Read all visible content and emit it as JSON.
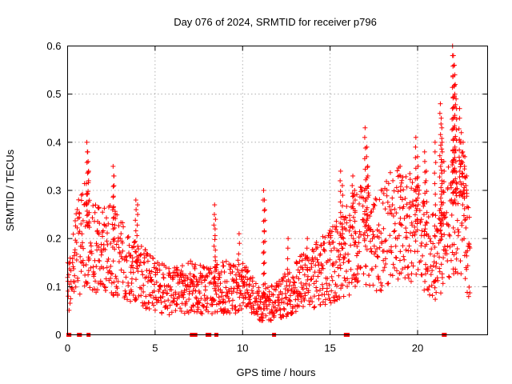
{
  "chart_data": {
    "type": "scatter",
    "title": "Day 076 of 2024, SRMTID for receiver p796",
    "xlabel": "GPS time / hours",
    "ylabel": "SRMTID / TECUs",
    "xlim": [
      0,
      24
    ],
    "ylim": [
      0,
      0.6
    ],
    "xticks": [
      0,
      5,
      10,
      15,
      20
    ],
    "xtick_labels": [
      "0",
      "5",
      "10",
      "15",
      "20"
    ],
    "yticks": [
      0,
      0.1,
      0.2,
      0.3,
      0.4,
      0.5,
      0.6
    ],
    "ytick_labels": [
      "0",
      "0.1",
      "0.2",
      "0.3",
      "0.4",
      "0.5",
      "0.6"
    ],
    "grid": true,
    "marker": "plus",
    "color": "#ff0000",
    "series": [
      {
        "name": "SRMTID",
        "trend": {
          "x": [
            0.0,
            0.3,
            0.6,
            0.9,
            1.1,
            1.5,
            2.0,
            2.5,
            3.0,
            3.5,
            4.0,
            4.5,
            5.0,
            6.0,
            7.0,
            8.0,
            9.0,
            10.0,
            11.0,
            12.0,
            13.0,
            14.0,
            15.0,
            15.8,
            16.5,
            17.0,
            17.5,
            18.0,
            18.5,
            19.0,
            19.5,
            20.0,
            20.5,
            21.0,
            21.5,
            22.0,
            22.5,
            23.0
          ],
          "y": [
            0.1,
            0.14,
            0.18,
            0.2,
            0.22,
            0.18,
            0.17,
            0.18,
            0.16,
            0.13,
            0.15,
            0.12,
            0.1,
            0.09,
            0.1,
            0.09,
            0.1,
            0.1,
            0.06,
            0.07,
            0.1,
            0.12,
            0.14,
            0.17,
            0.2,
            0.21,
            0.19,
            0.2,
            0.22,
            0.24,
            0.22,
            0.21,
            0.17,
            0.16,
            0.2,
            0.25,
            0.28,
            0.15
          ]
        },
        "spikes": [
          {
            "x": 1.1,
            "y": 0.4
          },
          {
            "x": 1.15,
            "y": 0.38
          },
          {
            "x": 1.2,
            "y": 0.34
          },
          {
            "x": 2.6,
            "y": 0.35
          },
          {
            "x": 2.65,
            "y": 0.33
          },
          {
            "x": 3.9,
            "y": 0.28
          },
          {
            "x": 4.0,
            "y": 0.27
          },
          {
            "x": 8.4,
            "y": 0.27
          },
          {
            "x": 8.45,
            "y": 0.24
          },
          {
            "x": 9.8,
            "y": 0.21
          },
          {
            "x": 11.2,
            "y": 0.3
          },
          {
            "x": 11.25,
            "y": 0.28
          },
          {
            "x": 12.6,
            "y": 0.2
          },
          {
            "x": 13.7,
            "y": 0.2
          },
          {
            "x": 15.6,
            "y": 0.34
          },
          {
            "x": 15.7,
            "y": 0.31
          },
          {
            "x": 16.3,
            "y": 0.33
          },
          {
            "x": 16.4,
            "y": 0.3
          },
          {
            "x": 17.0,
            "y": 0.43
          },
          {
            "x": 17.1,
            "y": 0.39
          },
          {
            "x": 17.15,
            "y": 0.35
          },
          {
            "x": 19.0,
            "y": 0.35
          },
          {
            "x": 19.9,
            "y": 0.41
          },
          {
            "x": 20.0,
            "y": 0.37
          },
          {
            "x": 20.4,
            "y": 0.38
          },
          {
            "x": 20.5,
            "y": 0.34
          },
          {
            "x": 21.0,
            "y": 0.4
          },
          {
            "x": 21.3,
            "y": 0.48
          },
          {
            "x": 21.35,
            "y": 0.45
          },
          {
            "x": 21.4,
            "y": 0.4
          },
          {
            "x": 21.5,
            "y": 0.36
          },
          {
            "x": 22.0,
            "y": 0.6
          },
          {
            "x": 22.05,
            "y": 0.58
          },
          {
            "x": 22.1,
            "y": 0.56
          },
          {
            "x": 22.15,
            "y": 0.52
          },
          {
            "x": 22.2,
            "y": 0.49
          },
          {
            "x": 22.4,
            "y": 0.47
          },
          {
            "x": 22.5,
            "y": 0.42
          },
          {
            "x": 22.6,
            "y": 0.4
          },
          {
            "x": 22.7,
            "y": 0.37
          },
          {
            "x": 22.8,
            "y": 0.33
          }
        ],
        "zero_values_x": [
          0.05,
          0.1,
          0.65,
          0.7,
          1.2,
          7.1,
          7.2,
          7.3,
          8.0,
          8.1,
          8.5,
          11.8,
          15.9,
          16.0,
          21.5,
          21.55
        ]
      }
    ]
  }
}
